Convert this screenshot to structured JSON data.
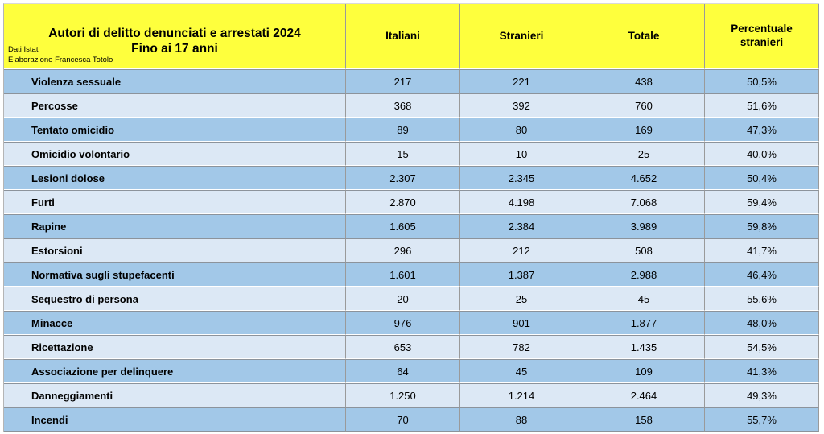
{
  "header": {
    "title_line1": "Autori di delitto denunciati e arrestati 2024",
    "title_line2": "Fino ai 17 anni",
    "source_line1": "Dati Istat",
    "source_line2": "Elaborazione Francesca Totolo",
    "columns": [
      "Italiani",
      "Stranieri",
      "Totale",
      "Percentuale stranieri"
    ]
  },
  "colors": {
    "header_bg": "#feff3d",
    "row_dark": "#a2c8e8",
    "row_light": "#dce8f5",
    "grid_line": "#9a9a9a"
  },
  "chart_data": {
    "type": "table",
    "title": "Autori di delitto denunciati e arrestati 2024 — Fino ai 17 anni",
    "columns": [
      "Italiani",
      "Stranieri",
      "Totale",
      "Percentuale stranieri"
    ],
    "rows": [
      {
        "label": "Violenza sessuale",
        "italiani": "217",
        "stranieri": "221",
        "totale": "438",
        "percentuale": "50,5%"
      },
      {
        "label": "Percosse",
        "italiani": "368",
        "stranieri": "392",
        "totale": "760",
        "percentuale": "51,6%"
      },
      {
        "label": "Tentato omicidio",
        "italiani": "89",
        "stranieri": "80",
        "totale": "169",
        "percentuale": "47,3%"
      },
      {
        "label": "Omicidio volontario",
        "italiani": "15",
        "stranieri": "10",
        "totale": "25",
        "percentuale": "40,0%"
      },
      {
        "label": "Lesioni dolose",
        "italiani": "2.307",
        "stranieri": "2.345",
        "totale": "4.652",
        "percentuale": "50,4%"
      },
      {
        "label": "Furti",
        "italiani": "2.870",
        "stranieri": "4.198",
        "totale": "7.068",
        "percentuale": "59,4%"
      },
      {
        "label": "Rapine",
        "italiani": "1.605",
        "stranieri": "2.384",
        "totale": "3.989",
        "percentuale": "59,8%"
      },
      {
        "label": "Estorsioni",
        "italiani": "296",
        "stranieri": "212",
        "totale": "508",
        "percentuale": "41,7%"
      },
      {
        "label": "Normativa sugli stupefacenti",
        "italiani": "1.601",
        "stranieri": "1.387",
        "totale": "2.988",
        "percentuale": "46,4%"
      },
      {
        "label": "Sequestro di persona",
        "italiani": "20",
        "stranieri": "25",
        "totale": "45",
        "percentuale": "55,6%"
      },
      {
        "label": "Minacce",
        "italiani": "976",
        "stranieri": "901",
        "totale": "1.877",
        "percentuale": "48,0%"
      },
      {
        "label": "Ricettazione",
        "italiani": "653",
        "stranieri": "782",
        "totale": "1.435",
        "percentuale": "54,5%"
      },
      {
        "label": "Associazione per delinquere",
        "italiani": "64",
        "stranieri": "45",
        "totale": "109",
        "percentuale": "41,3%"
      },
      {
        "label": "Danneggiamenti",
        "italiani": "1.250",
        "stranieri": "1.214",
        "totale": "2.464",
        "percentuale": "49,3%"
      },
      {
        "label": "Incendi",
        "italiani": "70",
        "stranieri": "88",
        "totale": "158",
        "percentuale": "55,7%"
      }
    ]
  }
}
